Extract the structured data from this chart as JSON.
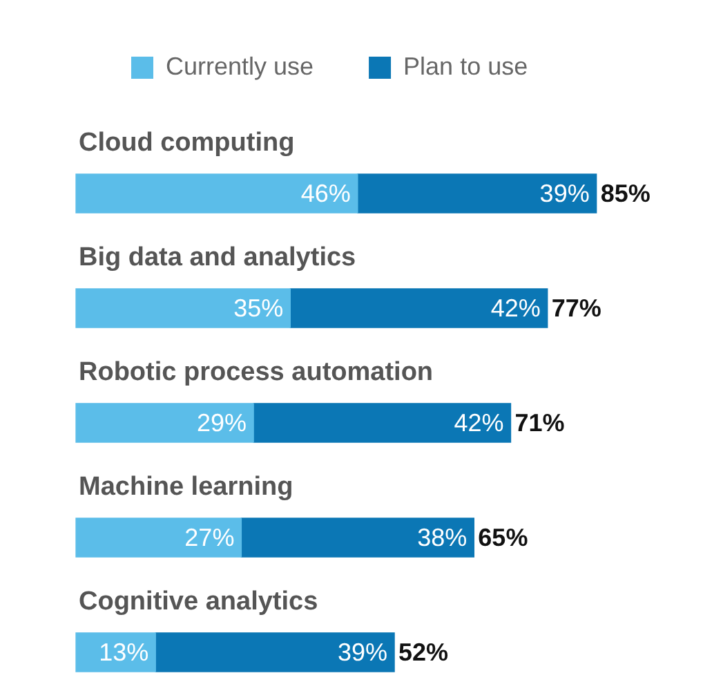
{
  "chart_data": {
    "type": "bar",
    "orientation": "horizontal",
    "stacked": true,
    "legend": "top left",
    "categories": [
      "Cloud computing",
      "Big data and analytics",
      "Robotic process automation",
      "Machine learning",
      "Cognitive analytics"
    ],
    "series": [
      {
        "name": "Currently use",
        "color": "#5bbde9",
        "values": [
          46,
          35,
          29,
          27,
          13
        ],
        "value_labels": [
          "46%",
          "35%",
          "29%",
          "27%",
          "13%"
        ]
      },
      {
        "name": "Plan to use",
        "color": "#0b77b5",
        "values": [
          39,
          42,
          42,
          38,
          39
        ],
        "value_labels": [
          "39%",
          "42%",
          "42%",
          "38%",
          "39%"
        ]
      }
    ],
    "totals": [
      "85%",
      "77%",
      "71%",
      "65%",
      "52%"
    ]
  }
}
